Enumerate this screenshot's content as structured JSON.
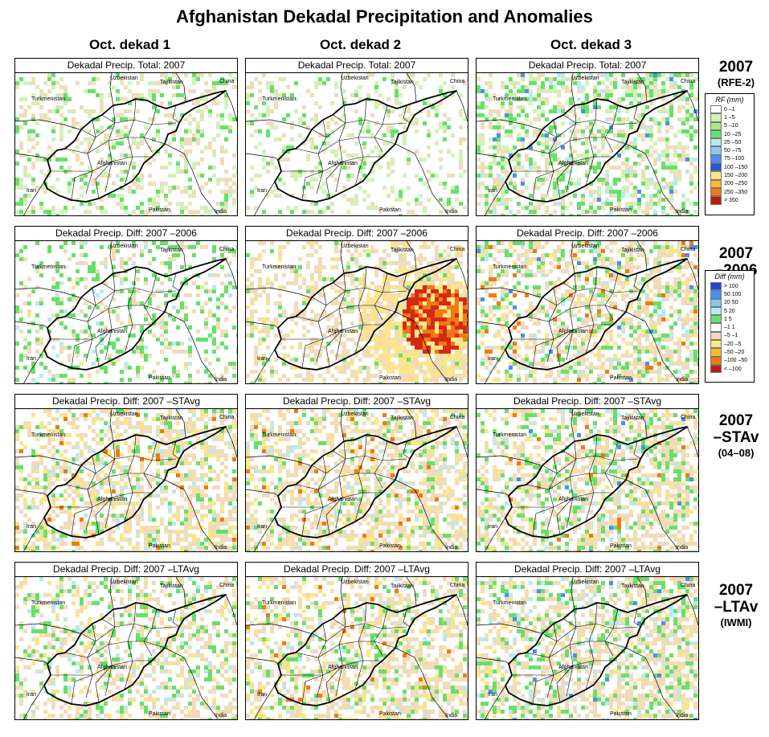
{
  "title": "Afghanistan Dekadal Precipitation and Anomalies",
  "columns": [
    "Oct. dekad 1",
    "Oct. dekad 2",
    "Oct. dekad 3"
  ],
  "rows": [
    {
      "label_main": "2007",
      "label_sub": "(RFE-2)",
      "panel_titles": [
        "Dekadal Precip. Total: 2007",
        "Dekadal Precip. Total: 2007",
        "Dekadal Precip. Total: 2007"
      ],
      "kind": "rf"
    },
    {
      "label_main": "2007\n–2006",
      "label_sub": "",
      "panel_titles": [
        "Dekadal Precip. Diff:  2007 –2006",
        "Dekadal Precip. Diff:  2007 –2006",
        "Dekadal Precip. Diff:  2007 –2006"
      ],
      "kind": "diff"
    },
    {
      "label_main": "2007\n–STAv",
      "label_sub": "(04–08)",
      "panel_titles": [
        "Dekadal Precip. Diff:  2007 –STAvg",
        "Dekadal Precip. Diff:  2007 –STAvg",
        "Dekadal Precip. Diff:  2007 –STAvg"
      ],
      "kind": "diff"
    },
    {
      "label_main": "2007\n–LTAv",
      "label_sub": "(IWMI)",
      "panel_titles": [
        "Dekadal Precip. Diff:  2007 –LTAvg",
        "Dekadal Precip. Diff:  2007 –LTAvg",
        "Dekadal Precip. Diff:  2007 –LTAvg"
      ],
      "kind": "diff"
    }
  ],
  "place_labels": [
    "Uzbekistan",
    "Tajikistan",
    "China",
    "Turkmenistan",
    "Afghanistan",
    "Iran",
    "Pakistan",
    "India"
  ],
  "legend_rf": {
    "title": "RF (mm)",
    "entries": [
      {
        "label": "0 –1",
        "color": "#ffffff"
      },
      {
        "label": "1 –5",
        "color": "#d2f2b8"
      },
      {
        "label": "5 –10",
        "color": "#a6eb86"
      },
      {
        "label": "10 –25",
        "color": "#67e06a"
      },
      {
        "label": "25 –50",
        "color": "#b7eaf0"
      },
      {
        "label": "50 –75",
        "color": "#8ec6f2"
      },
      {
        "label": "75 –100",
        "color": "#4a8ff0"
      },
      {
        "label": "100 –150",
        "color": "#2457d8"
      },
      {
        "label": "150 –200",
        "color": "#fde58a"
      },
      {
        "label": "200 –250",
        "color": "#fbbb2a"
      },
      {
        "label": "250 –350",
        "color": "#f07a12"
      },
      {
        "label": "> 350",
        "color": "#b81d10"
      }
    ]
  },
  "legend_diff": {
    "title": "Diff (mm)",
    "entries": [
      {
        "label": "> 100",
        "color": "#1c48d0"
      },
      {
        "label": "50  100",
        "color": "#4a8ff0"
      },
      {
        "label": "20  50",
        "color": "#8ec6f2"
      },
      {
        "label": "5  20",
        "color": "#b7eaf0"
      },
      {
        "label": "1  5",
        "color": "#67e06a"
      },
      {
        "label": "–1  1",
        "color": "#ffffff"
      },
      {
        "label": "–5  –1",
        "color": "#efdcb8"
      },
      {
        "label": "–20  –5",
        "color": "#fde58a"
      },
      {
        "label": "–50  –20",
        "color": "#fbbb2a"
      },
      {
        "label": "–100  –50",
        "color": "#f07a12"
      },
      {
        "label": "< –100",
        "color": "#b81d10"
      }
    ]
  }
}
